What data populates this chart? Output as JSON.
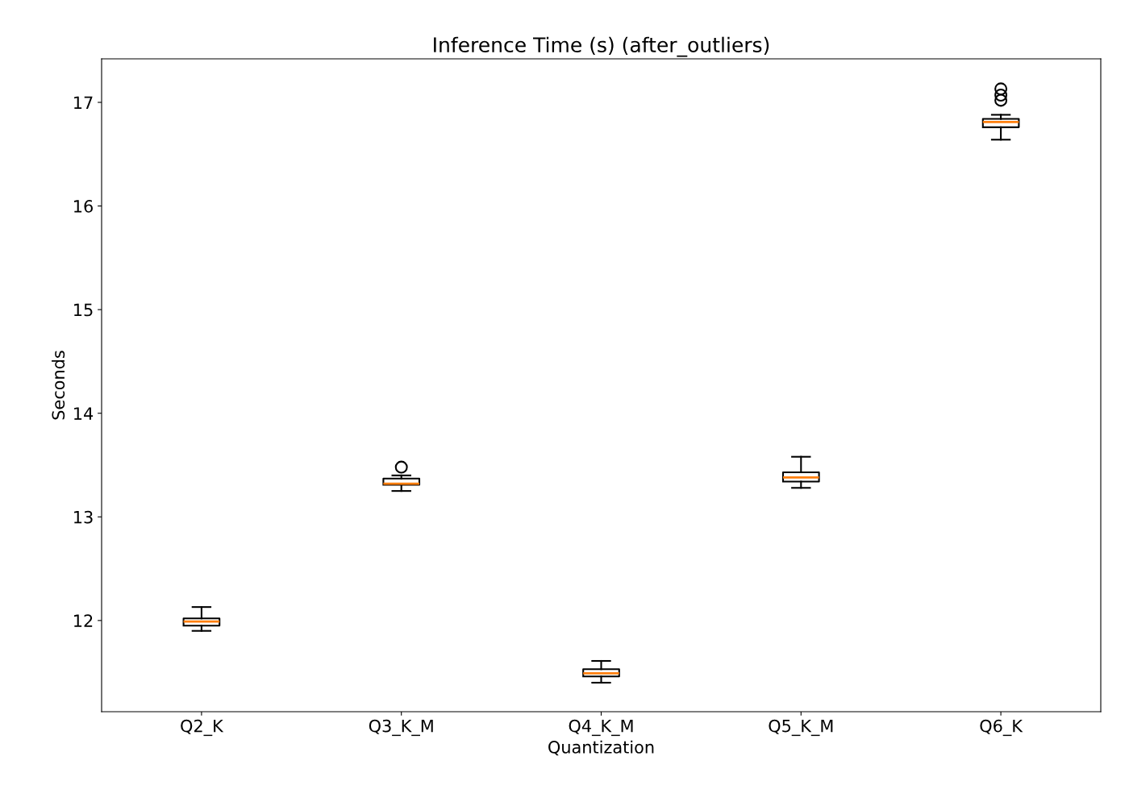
{
  "chart_data": {
    "type": "box",
    "title": "Inference Time (s) (after_outliers)",
    "xlabel": "Quantization",
    "ylabel": "Seconds",
    "categories": [
      "Q2_K",
      "Q3_K_M",
      "Q4_K_M",
      "Q5_K_M",
      "Q6_K"
    ],
    "boxes": [
      {
        "low": 11.9,
        "q1": 11.95,
        "median": 11.99,
        "q3": 12.02,
        "high": 12.13
      },
      {
        "low": 13.25,
        "q1": 13.31,
        "median": 13.32,
        "q3": 13.37,
        "high": 13.4,
        "outliers": [
          13.48
        ]
      },
      {
        "low": 11.4,
        "q1": 11.46,
        "median": 11.49,
        "q3": 11.53,
        "high": 11.61
      },
      {
        "low": 13.28,
        "q1": 13.34,
        "median": 13.38,
        "q3": 13.43,
        "high": 13.58
      },
      {
        "low": 16.64,
        "q1": 16.76,
        "median": 16.81,
        "q3": 16.84,
        "high": 16.88,
        "outliers": [
          17.02,
          17.07,
          17.13
        ]
      }
    ],
    "ylim": [
      11.12,
      17.42
    ],
    "yticks": [
      12,
      13,
      14,
      15,
      16,
      17
    ],
    "grid": false
  }
}
